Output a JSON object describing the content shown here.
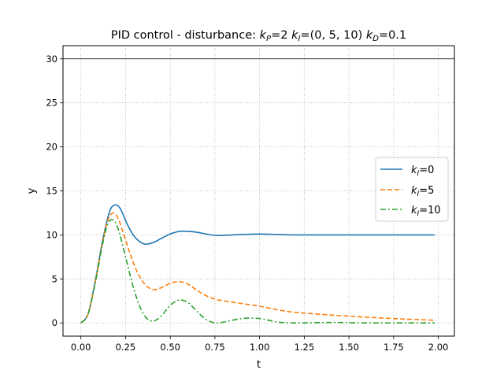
{
  "chart_data": {
    "type": "line",
    "title": "PID control - disturbance: k_P=2  k_I=(0, 5, 10)  k_D=0.1",
    "title_parts": {
      "prefix": "PID control - disturbance: ",
      "kp_symbol": "k",
      "kp_sub": "P",
      "kp_val": "=2  ",
      "ki_symbol": "k",
      "ki_sub": "I",
      "ki_val": "=(0, 5, 10)  ",
      "kd_symbol": "k",
      "kd_sub": "D",
      "kd_val": "=0.1"
    },
    "xlabel": "t",
    "ylabel": "y",
    "xlim": [
      -0.1,
      2.09
    ],
    "ylim": [
      -1.5,
      31.5
    ],
    "xticks": [
      {
        "value": 0.0,
        "label": "0.00"
      },
      {
        "value": 0.25,
        "label": "0.25"
      },
      {
        "value": 0.5,
        "label": "0.50"
      },
      {
        "value": 0.75,
        "label": "0.75"
      },
      {
        "value": 1.0,
        "label": "1.00"
      },
      {
        "value": 1.25,
        "label": "1.25"
      },
      {
        "value": 1.5,
        "label": "1.50"
      },
      {
        "value": 1.75,
        "label": "1.75"
      },
      {
        "value": 2.0,
        "label": "2.00"
      }
    ],
    "yticks": [
      {
        "value": 0,
        "label": "0"
      },
      {
        "value": 5,
        "label": "5"
      },
      {
        "value": 10,
        "label": "10"
      },
      {
        "value": 15,
        "label": "15"
      },
      {
        "value": 20,
        "label": "20"
      },
      {
        "value": 25,
        "label": "25"
      },
      {
        "value": 30,
        "label": "30"
      }
    ],
    "grid": true,
    "reference_line": {
      "y": 30,
      "color": "#000000"
    },
    "legend_position": "center-right",
    "series": [
      {
        "name": "k_I=0",
        "legend_symbol": "k",
        "legend_sub": "I",
        "legend_val": "=0",
        "color": "#1f77b4",
        "dash": "solid",
        "x": [
          0.0,
          0.04,
          0.08,
          0.12,
          0.16,
          0.19,
          0.22,
          0.26,
          0.3,
          0.35,
          0.4,
          0.45,
          0.5,
          0.55,
          0.6,
          0.65,
          0.7,
          0.75,
          0.8,
          0.9,
          1.0,
          1.1,
          1.2,
          1.4,
          1.6,
          1.8,
          1.98
        ],
        "y": [
          0.0,
          1.0,
          4.7,
          9.2,
          12.6,
          13.4,
          13.0,
          11.2,
          9.8,
          9.0,
          9.1,
          9.6,
          10.1,
          10.4,
          10.4,
          10.3,
          10.1,
          9.95,
          9.95,
          10.05,
          10.1,
          10.05,
          10.0,
          10.0,
          10.0,
          10.0,
          10.0
        ]
      },
      {
        "name": "k_I=5",
        "legend_symbol": "k",
        "legend_sub": "I",
        "legend_val": "=5",
        "color": "#ff7f0e",
        "dash": "dashed",
        "x": [
          0.0,
          0.04,
          0.08,
          0.12,
          0.15,
          0.18,
          0.21,
          0.25,
          0.3,
          0.35,
          0.4,
          0.45,
          0.5,
          0.55,
          0.6,
          0.65,
          0.7,
          0.75,
          0.8,
          0.9,
          1.0,
          1.1,
          1.2,
          1.4,
          1.6,
          1.8,
          1.98
        ],
        "y": [
          0.0,
          1.0,
          4.6,
          9.0,
          11.6,
          12.5,
          11.8,
          9.4,
          6.5,
          4.6,
          3.8,
          4.0,
          4.5,
          4.7,
          4.4,
          3.7,
          3.1,
          2.7,
          2.5,
          2.2,
          1.9,
          1.5,
          1.2,
          0.9,
          0.65,
          0.45,
          0.3
        ]
      },
      {
        "name": "k_I=10",
        "legend_symbol": "k",
        "legend_sub": "I",
        "legend_val": "=10",
        "color": "#2ca02c",
        "dash": "dashdot",
        "x": [
          0.0,
          0.04,
          0.08,
          0.12,
          0.15,
          0.18,
          0.21,
          0.25,
          0.3,
          0.35,
          0.4,
          0.45,
          0.5,
          0.55,
          0.6,
          0.65,
          0.7,
          0.75,
          0.8,
          0.9,
          1.0,
          1.1,
          1.2,
          1.4,
          1.6,
          1.8,
          1.98
        ],
        "y": [
          0.0,
          1.0,
          4.5,
          8.8,
          11.2,
          11.7,
          10.6,
          7.5,
          3.6,
          1.0,
          0.2,
          0.8,
          2.0,
          2.6,
          2.3,
          1.3,
          0.4,
          0.0,
          0.1,
          0.5,
          0.5,
          0.1,
          0.0,
          0.05,
          0.0,
          0.0,
          0.0
        ]
      }
    ]
  }
}
